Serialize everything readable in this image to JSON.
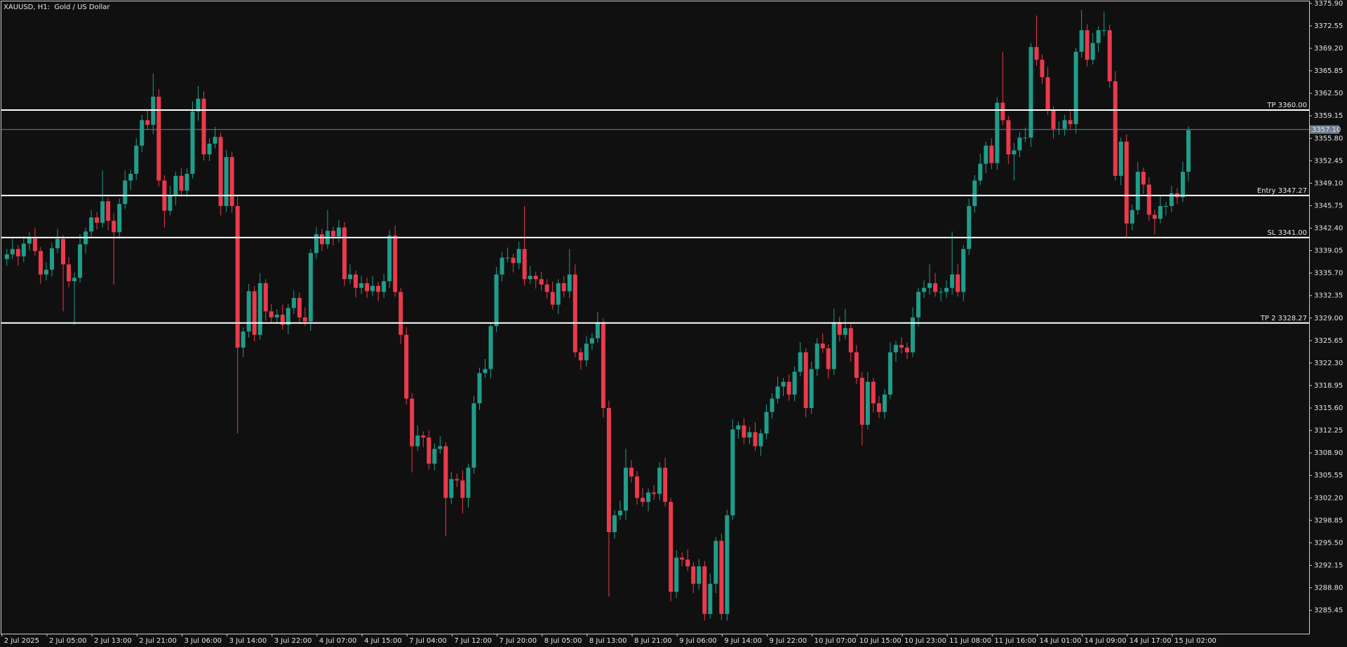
{
  "chart_data": {
    "type": "candlestick",
    "title": "XAUUSD, H1:  Gold / US Dollar",
    "categories": [
      "2 Jul 2025",
      null,
      null,
      null,
      null,
      null,
      null,
      null,
      "2 Jul 05:00",
      null,
      null,
      null,
      null,
      null,
      null,
      null,
      "2 Jul 13:00",
      null,
      null,
      null,
      null,
      null,
      null,
      null,
      "2 Jul 21:00",
      null,
      null,
      null,
      null,
      null,
      null,
      null,
      "3 Jul 06:00",
      null,
      null,
      null,
      null,
      null,
      null,
      null,
      "3 Jul 14:00",
      null,
      null,
      null,
      null,
      null,
      null,
      null,
      "3 Jul 22:00",
      null,
      null,
      null,
      null,
      null,
      null,
      null,
      "4 Jul 07:00",
      null,
      null,
      null,
      null,
      null,
      null,
      null,
      "4 Jul 15:00",
      null,
      null,
      null,
      null,
      null,
      null,
      null,
      "7 Jul 04:00",
      null,
      null,
      null,
      null,
      null,
      null,
      null,
      "7 Jul 12:00",
      null,
      null,
      null,
      null,
      null,
      null,
      null,
      "7 Jul 20:00",
      null,
      null,
      null,
      null,
      null,
      null,
      null,
      "8 Jul 05:00",
      null,
      null,
      null,
      null,
      null,
      null,
      null,
      "8 Jul 13:00",
      null,
      null,
      null,
      null,
      null,
      null,
      null,
      "8 Jul 21:00",
      null,
      null,
      null,
      null,
      null,
      null,
      null,
      "9 Jul 06:00",
      null,
      null,
      null,
      null,
      null,
      null,
      null,
      "9 Jul 14:00",
      null,
      null,
      null,
      null,
      null,
      null,
      null,
      "9 Jul 22:00",
      null,
      null,
      null,
      null,
      null,
      null,
      null,
      "10 Jul 07:00",
      null,
      null,
      null,
      null,
      null,
      null,
      null,
      "10 Jul 15:00",
      null,
      null,
      null,
      null,
      null,
      null,
      null,
      "10 Jul 23:00",
      null,
      null,
      null,
      null,
      null,
      null,
      null,
      "11 Jul 08:00",
      null,
      null,
      null,
      null,
      null,
      null,
      null,
      "11 Jul 16:00",
      null,
      null,
      null,
      null,
      null,
      null,
      null,
      "14 Jul 01:00",
      null,
      null,
      null,
      null,
      null,
      null,
      null,
      "14 Jul 09:00",
      null,
      null,
      null,
      null,
      null,
      null,
      null,
      "14 Jul 17:00",
      null,
      null,
      null,
      null,
      null,
      null,
      null,
      "15 Jul 02:00",
      null,
      null
    ],
    "open": [
      3337.8,
      3338.5,
      3339.3,
      3338.2,
      3340.1,
      3341.0,
      3339.0,
      3335.5,
      3336.2,
      3339.4,
      3340.8,
      3337.0,
      3334.5,
      3335.0,
      3340.0,
      3341.9,
      3344.0,
      3343.2,
      3346.4,
      3343.5,
      3341.8,
      3346.0,
      3349.5,
      3350.5,
      3354.7,
      3358.5,
      3357.8,
      3362.0,
      3349.5,
      3345.0,
      3347.2,
      3350.2,
      3348.0,
      3350.5,
      3359.8,
      3361.7,
      3353.4,
      3355.0,
      3356.0,
      3345.7,
      3353.0,
      3345.7,
      3324.6,
      3327.0,
      3333.0,
      3326.5,
      3334.2,
      3330.0,
      3329.1,
      3329.5,
      3328.0,
      3330.5,
      3332.0,
      3329.1,
      3328.5,
      3338.7,
      3341.5,
      3340.0,
      3342.0,
      3341.2,
      3342.5,
      3334.8,
      3335.5,
      3333.5,
      3334.2,
      3333.0,
      3333.8,
      3332.9,
      3334.5,
      3341.3,
      3332.9,
      3326.5,
      3317.0,
      3309.9,
      3311.5,
      3311.2,
      3307.3,
      3309.5,
      3309.9,
      3302.2,
      3305.0,
      3304.8,
      3302.2,
      3306.7,
      3316.3,
      3320.8,
      3321.4,
      3327.8,
      3335.5,
      3338.0,
      3338.0,
      3337.2,
      3339.3,
      3334.8,
      3335.3,
      3334.8,
      3334.0,
      3332.9,
      3331.0,
      3334.2,
      3333.0,
      3335.5,
      3323.9,
      3322.7,
      3325.2,
      3326.0,
      3328.4,
      3315.6,
      3297.1,
      3299.6,
      3300.3,
      3306.7,
      3305.4,
      3302.2,
      3301.6,
      3303.0,
      3302.8,
      3306.7,
      3301.6,
      3288.2,
      3293.3,
      3293.0,
      3292.0,
      3289.4,
      3292.0,
      3284.9,
      3289.4,
      3295.8,
      3284.9,
      3299.6,
      3312.4,
      3313.0,
      3311.2,
      3312.0,
      3309.9,
      3311.8,
      3315.0,
      3317.0,
      3318.8,
      3319.5,
      3317.6,
      3321.0,
      3323.9,
      3315.6,
      3321.4,
      3325.2,
      3324.5,
      3321.4,
      3328.4,
      3326.5,
      3327.5,
      3323.9,
      3320.1,
      3313.1,
      3319.5,
      3316.3,
      3315.0,
      3317.6,
      3323.9,
      3325.0,
      3324.6,
      3323.9,
      3329.1,
      3332.9,
      3333.5,
      3334.2,
      3332.9,
      3332.9,
      3333.5,
      3335.5,
      3332.9,
      3339.3,
      3345.7,
      3349.5,
      3352.0,
      3354.7,
      3352.1,
      3361.1,
      3358.5,
      3353.4,
      3354.0,
      3355.9,
      3355.9,
      3369.4,
      3367.5,
      3364.9,
      3360.0,
      3357.2,
      3357.2,
      3358.5,
      3357.9,
      3368.7,
      3371.9,
      3367.5,
      3370.0,
      3371.9,
      3371.9,
      3364.3,
      3350.2,
      3355.3,
      3343.1,
      3345.1,
      3350.8,
      3348.9,
      3344.4,
      3343.8,
      3345.7,
      3345.7,
      3347.6,
      3347.0,
      3350.8
    ],
    "high": [
      3339.3,
      3340.8,
      3339.9,
      3341.2,
      3341.8,
      3342.5,
      3339.6,
      3337.3,
      3340.2,
      3342.3,
      3341.4,
      3338.1,
      3335.8,
      3341.5,
      3342.5,
      3345.1,
      3344.8,
      3351.0,
      3347.0,
      3344.6,
      3346.8,
      3351.0,
      3351.1,
      3355.8,
      3359.3,
      3360.0,
      3365.5,
      3363.1,
      3350.3,
      3348.7,
      3350.8,
      3351.3,
      3351.3,
      3361.3,
      3363.6,
      3362.8,
      3355.8,
      3357.5,
      3356.6,
      3354.1,
      3353.8,
      3347.2,
      3327.6,
      3334.1,
      3333.8,
      3335.7,
      3334.8,
      3331.1,
      3330.3,
      3331.0,
      3331.1,
      3333.1,
      3332.8,
      3330.6,
      3339.3,
      3342.6,
      3342.3,
      3345.1,
      3342.6,
      3343.6,
      3343.3,
      3337.0,
      3336.1,
      3335.3,
      3335.0,
      3335.3,
      3334.4,
      3335.6,
      3342.1,
      3342.8,
      3333.5,
      3327.6,
      3317.8,
      3313.0,
      3312.1,
      3312.3,
      3310.3,
      3311.4,
      3310.5,
      3306.1,
      3305.8,
      3306.3,
      3307.3,
      3317.4,
      3321.6,
      3322.9,
      3328.4,
      3336.6,
      3338.8,
      3339.5,
      3338.6,
      3340.4,
      3345.7,
      3336.8,
      3335.9,
      3335.9,
      3334.8,
      3334.4,
      3334.8,
      3335.3,
      3339.3,
      3337.0,
      3324.5,
      3326.3,
      3326.8,
      3329.9,
      3329.0,
      3316.7,
      3300.4,
      3301.8,
      3309.5,
      3307.8,
      3306.2,
      3303.7,
      3303.6,
      3304.1,
      3307.5,
      3308.2,
      3302.2,
      3294.4,
      3294.1,
      3294.5,
      3292.6,
      3293.1,
      3292.8,
      3290.9,
      3296.4,
      3296.9,
      3300.4,
      3313.9,
      3313.6,
      3314.1,
      3312.8,
      3313.5,
      3312.4,
      3316.1,
      3317.8,
      3320.3,
      3320.1,
      3320.6,
      3321.8,
      3325.4,
      3324.5,
      3322.5,
      3326.0,
      3326.7,
      3325.1,
      3330.4,
      3329.2,
      3330.4,
      3328.1,
      3325.0,
      3320.9,
      3321.0,
      3320.1,
      3317.4,
      3318.4,
      3325.4,
      3325.6,
      3326.1,
      3325.4,
      3330.6,
      3333.5,
      3334.6,
      3337.0,
      3335.7,
      3333.5,
      3334.6,
      3341.9,
      3337.0,
      3339.9,
      3346.8,
      3350.3,
      3353.5,
      3355.3,
      3355.8,
      3361.9,
      3368.7,
      3359.1,
      3355.1,
      3356.7,
      3357.4,
      3370.0,
      3374.1,
      3368.3,
      3366.4,
      3360.6,
      3358.3,
      3359.3,
      3360.0,
      3369.3,
      3374.9,
      3372.8,
      3371.5,
      3372.5,
      3374.7,
      3372.7,
      3365.8,
      3355.9,
      3356.4,
      3345.9,
      3352.3,
      3351.4,
      3350.0,
      3345.2,
      3347.2,
      3346.3,
      3348.7,
      3348.4,
      3352.3,
      3357.6
    ],
    "low": [
      3336.8,
      3337.8,
      3336.8,
      3337.3,
      3339.1,
      3338.3,
      3334.1,
      3334.6,
      3335.2,
      3338.7,
      3330.0,
      3333.6,
      3328.0,
      3334.3,
      3338.6,
      3341.0,
      3342.2,
      3342.5,
      3342.1,
      3334.0,
      3340.8,
      3345.3,
      3348.1,
      3349.6,
      3353.7,
      3357.1,
      3356.4,
      3348.6,
      3342.5,
      3344.3,
      3345.8,
      3347.1,
      3347.0,
      3349.8,
      3358.4,
      3352.5,
      3352.4,
      3354.3,
      3344.3,
      3344.8,
      3344.7,
      3311.8,
      3323.2,
      3326.1,
      3325.5,
      3325.8,
      3328.6,
      3328.2,
      3328.1,
      3327.3,
      3326.6,
      3329.6,
      3328.1,
      3327.8,
      3327.1,
      3337.8,
      3339.0,
      3339.3,
      3339.8,
      3340.3,
      3333.8,
      3334.1,
      3332.1,
      3332.6,
      3332.0,
      3332.3,
      3331.5,
      3332.0,
      3333.5,
      3332.2,
      3325.1,
      3316.1,
      3306.0,
      3309.2,
      3309.8,
      3306.4,
      3306.3,
      3308.8,
      3296.5,
      3301.3,
      3303.8,
      3299.9,
      3300.8,
      3305.8,
      3315.3,
      3320.1,
      3320.0,
      3326.9,
      3334.5,
      3337.3,
      3335.8,
      3336.3,
      3333.8,
      3334.1,
      3333.4,
      3333.1,
      3331.9,
      3330.3,
      3329.6,
      3332.1,
      3332.0,
      3323.2,
      3321.3,
      3321.8,
      3324.2,
      3325.3,
      3314.2,
      3287.5,
      3296.1,
      3298.9,
      3298.9,
      3304.5,
      3301.2,
      3300.9,
      3300.2,
      3301.9,
      3301.8,
      3300.9,
      3286.8,
      3287.3,
      3292.0,
      3291.3,
      3288.0,
      3288.5,
      3283.9,
      3284.2,
      3288.0,
      3284.0,
      3283.9,
      3298.9,
      3311.0,
      3310.3,
      3310.2,
      3309.2,
      3308.5,
      3310.9,
      3314.0,
      3316.3,
      3317.4,
      3316.7,
      3316.6,
      3320.3,
      3314.2,
      3314.7,
      3320.4,
      3323.8,
      3320.0,
      3320.5,
      3325.5,
      3325.8,
      3322.5,
      3319.2,
      3310.0,
      3312.4,
      3314.9,
      3314.1,
      3314.0,
      3316.9,
      3322.5,
      3323.7,
      3322.9,
      3323.2,
      3327.7,
      3332.0,
      3332.5,
      3332.2,
      3331.5,
      3332.0,
      3332.5,
      3332.2,
      3331.5,
      3338.4,
      3344.7,
      3348.8,
      3350.6,
      3351.2,
      3351.1,
      3357.8,
      3352.0,
      3349.5,
      3353.0,
      3355.2,
      3354.5,
      3366.6,
      3363.9,
      3359.3,
      3355.8,
      3356.3,
      3356.2,
      3357.2,
      3356.5,
      3367.8,
      3366.5,
      3366.8,
      3368.6,
      3371.0,
      3363.3,
      3349.5,
      3348.8,
      3341.0,
      3342.1,
      3344.4,
      3347.5,
      3343.5,
      3341.5,
      3343.1,
      3344.3,
      3344.8,
      3346.0,
      3346.3,
      3349.4
    ],
    "close": [
      3338.5,
      3339.3,
      3338.2,
      3340.1,
      3341.0,
      3339.0,
      3335.5,
      3336.2,
      3339.4,
      3340.8,
      3337.0,
      3334.5,
      3335.0,
      3340.0,
      3341.9,
      3344.0,
      3343.2,
      3346.4,
      3343.5,
      3341.8,
      3346.0,
      3349.5,
      3350.5,
      3354.7,
      3358.5,
      3357.8,
      3362.0,
      3349.5,
      3345.0,
      3347.2,
      3350.2,
      3348.0,
      3350.5,
      3359.8,
      3361.7,
      3353.4,
      3355.0,
      3356.0,
      3345.7,
      3353.0,
      3345.7,
      3324.6,
      3327.0,
      3333.0,
      3326.5,
      3334.2,
      3330.0,
      3329.1,
      3329.5,
      3328.0,
      3330.5,
      3332.0,
      3329.1,
      3328.5,
      3338.7,
      3341.5,
      3340.0,
      3342.0,
      3341.2,
      3342.5,
      3334.8,
      3335.5,
      3333.5,
      3334.2,
      3333.0,
      3333.8,
      3332.9,
      3334.5,
      3341.3,
      3332.9,
      3326.5,
      3317.0,
      3309.9,
      3311.5,
      3311.2,
      3307.3,
      3309.5,
      3309.9,
      3302.2,
      3305.0,
      3304.8,
      3302.2,
      3306.7,
      3316.3,
      3320.8,
      3321.4,
      3327.8,
      3335.5,
      3338.0,
      3338.0,
      3337.2,
      3339.3,
      3334.8,
      3335.3,
      3334.8,
      3334.0,
      3332.9,
      3331.0,
      3334.2,
      3333.0,
      3335.5,
      3323.9,
      3322.7,
      3325.2,
      3326.0,
      3328.4,
      3315.6,
      3297.1,
      3299.6,
      3300.3,
      3306.7,
      3305.4,
      3302.2,
      3301.6,
      3303.0,
      3302.8,
      3306.7,
      3301.6,
      3288.2,
      3293.3,
      3293.0,
      3292.0,
      3289.4,
      3292.0,
      3284.9,
      3289.4,
      3295.8,
      3284.9,
      3299.6,
      3312.4,
      3313.0,
      3311.2,
      3312.0,
      3309.9,
      3311.8,
      3315.0,
      3317.0,
      3318.8,
      3319.5,
      3317.6,
      3321.0,
      3323.9,
      3315.6,
      3321.4,
      3325.2,
      3324.5,
      3321.4,
      3328.4,
      3326.5,
      3327.5,
      3323.9,
      3320.1,
      3313.1,
      3319.5,
      3316.3,
      3315.0,
      3317.6,
      3323.9,
      3325.0,
      3324.6,
      3323.9,
      3329.1,
      3332.9,
      3333.5,
      3334.2,
      3332.9,
      3332.9,
      3333.5,
      3335.5,
      3332.9,
      3339.3,
      3345.7,
      3349.5,
      3352.0,
      3354.7,
      3352.1,
      3361.1,
      3358.5,
      3353.4,
      3354.0,
      3355.9,
      3355.9,
      3369.4,
      3367.5,
      3364.9,
      3360.0,
      3357.2,
      3357.2,
      3358.5,
      3357.9,
      3368.7,
      3371.9,
      3367.5,
      3370.0,
      3371.9,
      3371.9,
      3364.3,
      3350.2,
      3355.3,
      3343.1,
      3345.1,
      3350.8,
      3348.9,
      3344.4,
      3343.8,
      3345.7,
      3345.7,
      3347.6,
      3347.0,
      3350.8,
      3357.0
    ],
    "up_color": "#1f9d8a",
    "down_color": "#ea3a4c",
    "ylim": [
      3281.96,
      3376.2
    ],
    "yticks": [
      {
        "value": 3375.9,
        "label": "3375.90"
      },
      3372.55,
      {
        "value": 3369.2,
        "label": "3369.20"
      },
      3365.85,
      {
        "value": 3362.5,
        "label": "3362.50"
      },
      3359.15,
      {
        "value": 3355.8,
        "label": "3355.80"
      },
      3352.45,
      {
        "value": 3349.1,
        "label": "3349.10"
      },
      3345.75,
      {
        "value": 3342.4,
        "label": "3342.40"
      },
      3339.05,
      {
        "value": 3335.7,
        "label": "3335.70"
      },
      3332.35,
      {
        "value": 3329,
        "label": "3329.00"
      },
      3325.65,
      {
        "value": 3322.3,
        "label": "3322.30"
      },
      3318.95,
      {
        "value": 3315.6,
        "label": "3315.60"
      },
      3312.25,
      {
        "value": 3308.9,
        "label": "3308.90"
      },
      3305.55,
      {
        "value": 3302.2,
        "label": "3302.20"
      },
      3298.85,
      {
        "value": 3295.5,
        "label": "3295.50"
      },
      3292.15,
      {
        "value": 3288.8,
        "label": "3288.80"
      },
      3285.45
    ],
    "levels": [
      {
        "label": "TP 3360.00",
        "value": 3360
      },
      {
        "label": "Entry 3347.27",
        "value": 3347.27
      },
      {
        "label": "SL 3341.00",
        "value": 3341
      },
      {
        "label": "TP 2 3328.27",
        "value": 3328.27
      }
    ],
    "level_color": "#ffffff",
    "current_price": {
      "value": 3357.1,
      "label": "3357.10"
    },
    "current_color": "#6f7f8f",
    "grid": false
  }
}
